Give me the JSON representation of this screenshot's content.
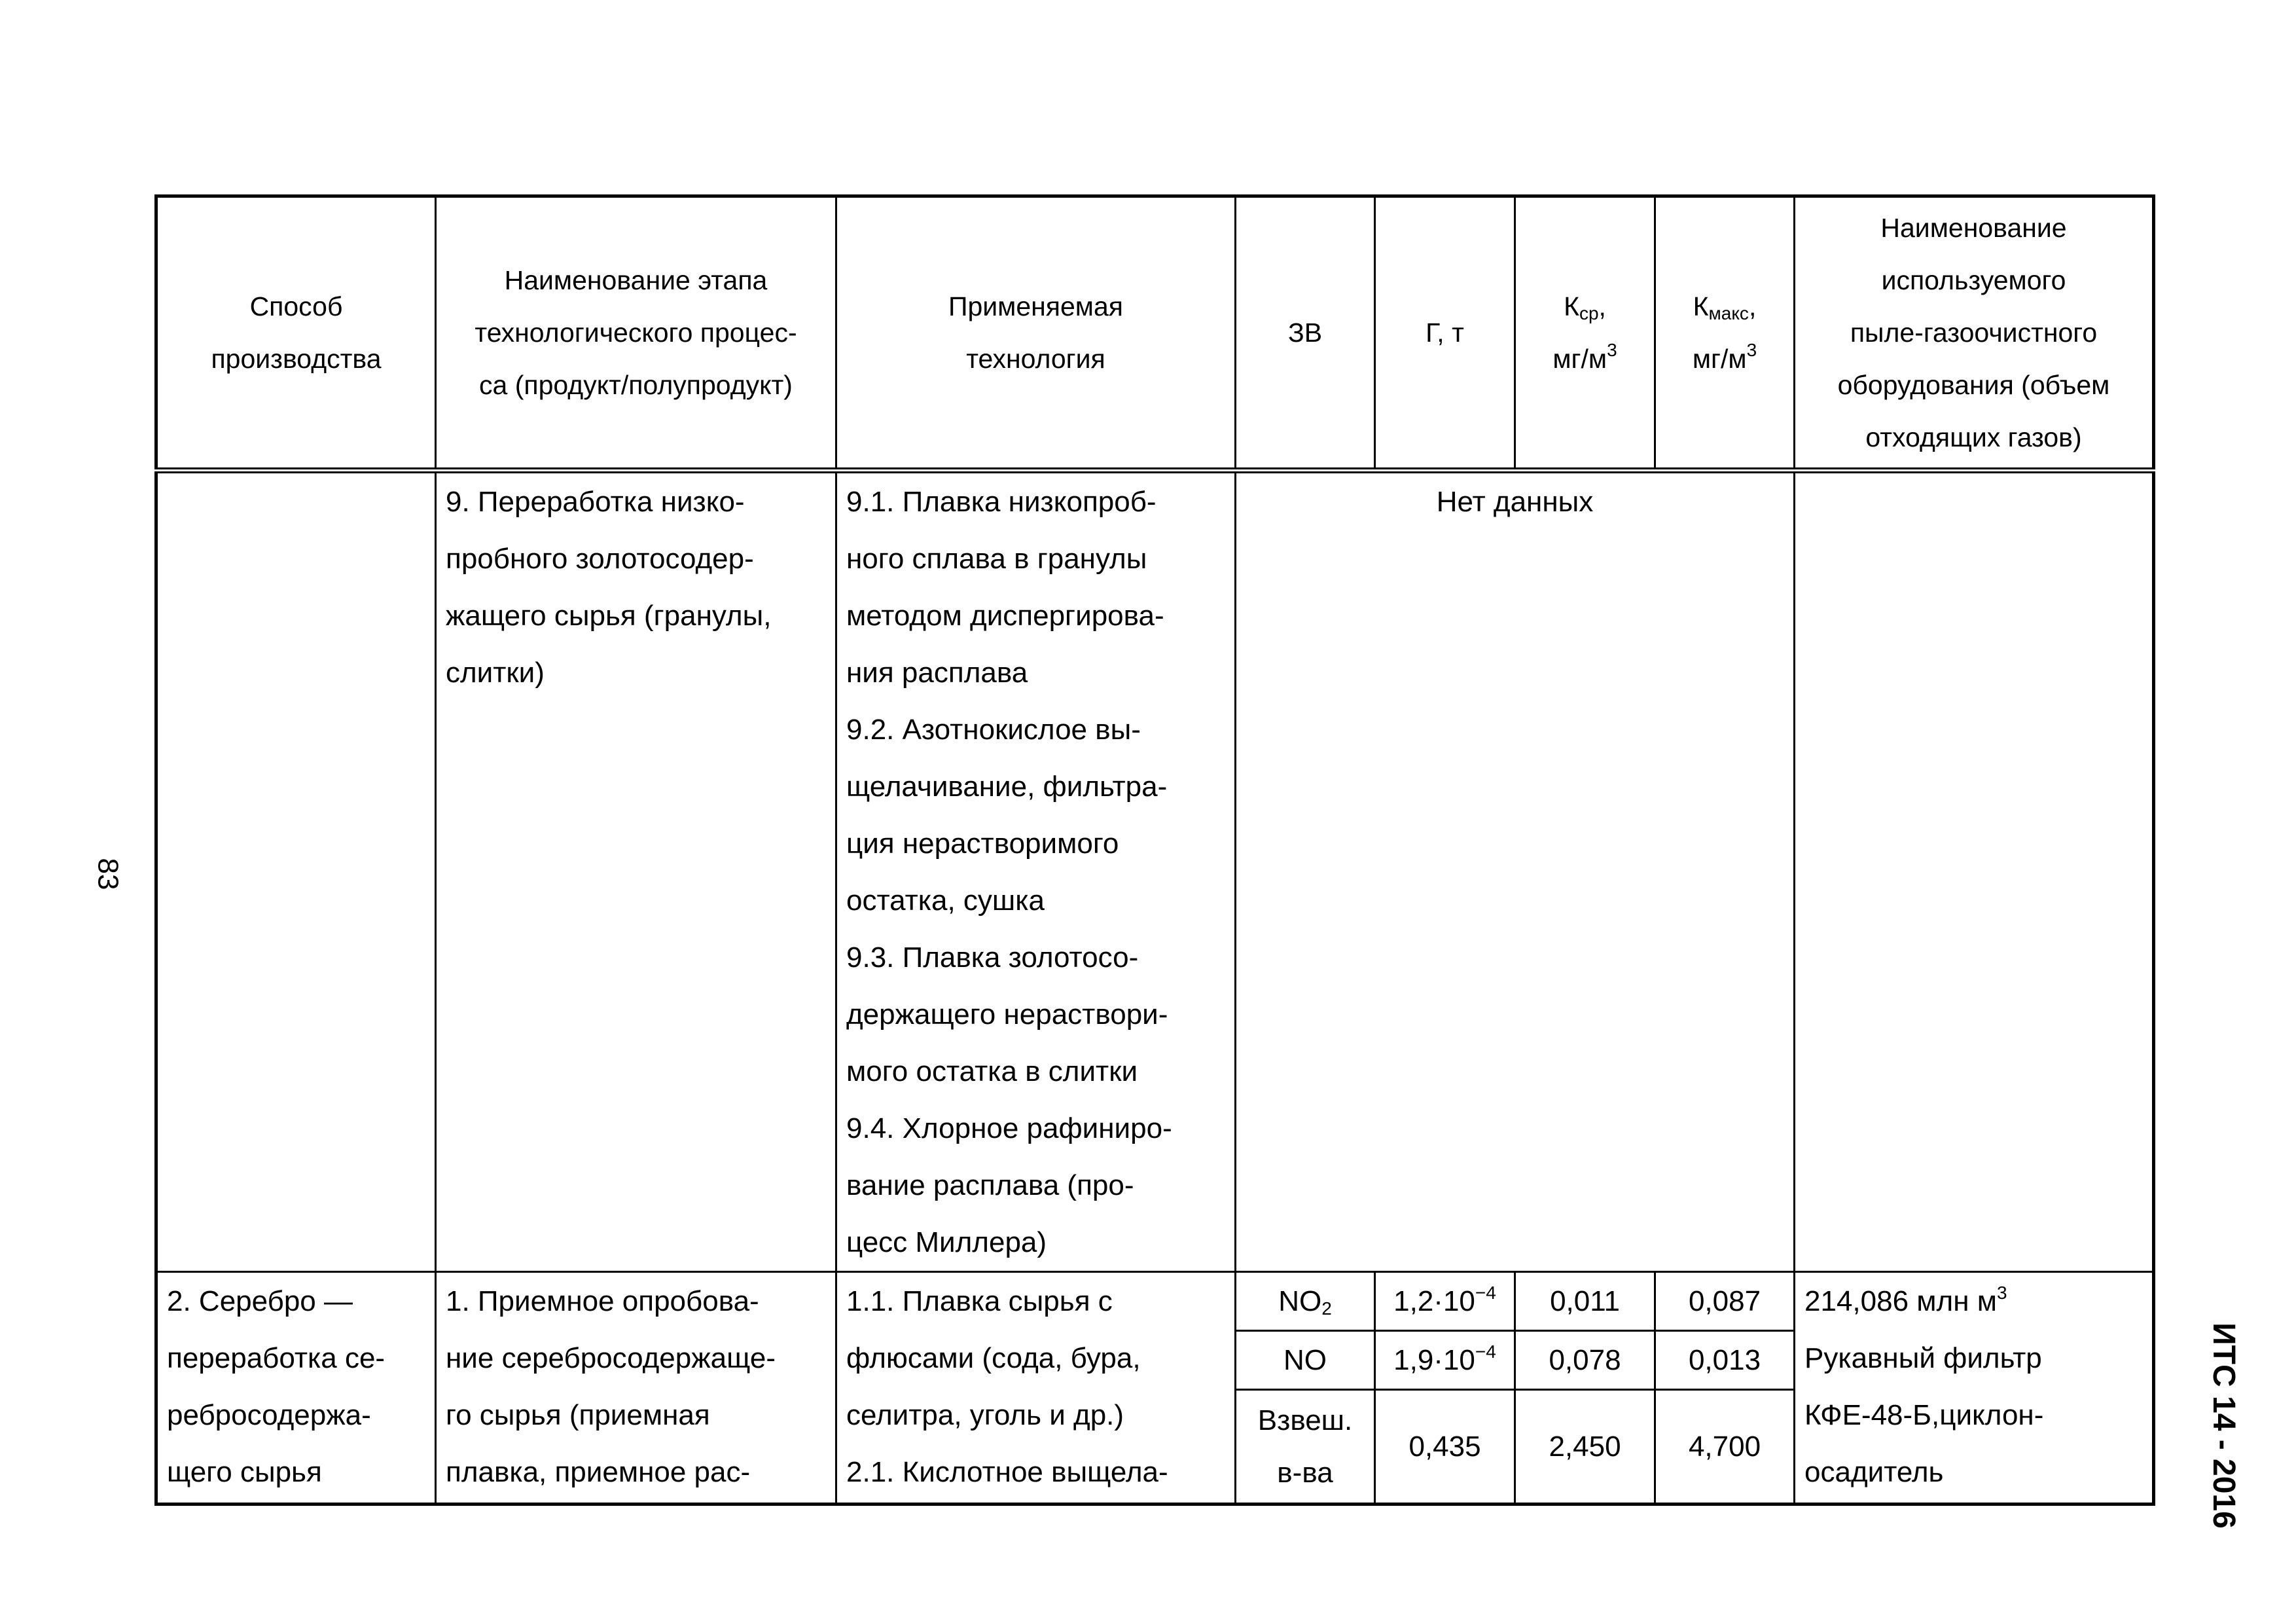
{
  "page_number": "83",
  "doc_code": "ИТС 14 - 2016",
  "header": {
    "method": "Способ\nпроизводства",
    "stage": "Наименование этапа\nтехнологического процес-\nса (продукт/полупродукт)",
    "technology": "Применяемая\nтехнология",
    "pollutant": "ЗВ",
    "g": "Г, т",
    "k_avg": {
      "main": "К",
      "sub": "ср",
      "suffix": ",",
      "unit": "мг/м",
      "unit_sup": "3"
    },
    "k_max": {
      "main": "К",
      "sub": "макс",
      "suffix": ",",
      "unit": "мг/м",
      "unit_sup": "3"
    },
    "equipment": "Наименование\nиспользуемого\nпыле-газоочистного\nоборудования (объем\nотходящих газов)"
  },
  "rows": [
    {
      "method": "",
      "stage": "9. Переработка низко-\nпробного золотосодер-\nжащего сырья (гранулы,\nслитки)",
      "technology": "9.1. Плавка низкопроб-\nного сплава в гранулы\nметодом диспергирова-\nния расплава\n9.2. Азотнокислое вы-\nщелачивание, фильтра-\nция нерастворимого\nостатка, сушка\n9.3. Плавка золотосо-\nдержащего нераствори-\nмого остатка в слитки\n9.4. Хлорное рафиниро-\nвание расплава (про-\nцесс Миллера)",
      "no_data": "Нет данных",
      "equipment": ""
    },
    {
      "method": "2. Серебро —\nпереработка се-\nребросодержа-\nщего сырья",
      "stage": "1. Приемное опробова-\nние серебросодержаще-\nго сырья (приемная\nплавка, приемное рас-",
      "technology": "1.1. Плавка сырья с\nфлюсами (сода, бура,\nселитра, уголь и др.)\n2.1. Кислотное выщела-",
      "equipment": "214,086 млн м",
      "equipment_sup": "3",
      "equipment_rest": "Рукавный фильтр\nКФЕ-48-Б,циклон-\nосадитель",
      "pollutants": [
        {
          "name": "NO",
          "name_sub": "2",
          "g": "1,2·10",
          "g_sup": "−4",
          "k_avg": "0,011",
          "k_max": "0,087"
        },
        {
          "name": "NO",
          "name_sub": "",
          "g": "1,9·10",
          "g_sup": "−4",
          "k_avg": "0,078",
          "k_max": "0,013"
        },
        {
          "name": "Взвеш.\nв-ва",
          "name_sub": "",
          "g": "0,435",
          "g_sup": "",
          "k_avg": "2,450",
          "k_max": "4,700"
        }
      ]
    }
  ]
}
